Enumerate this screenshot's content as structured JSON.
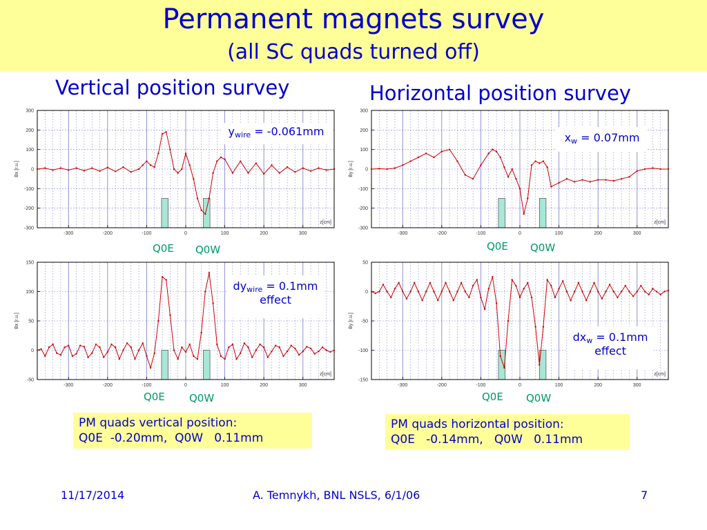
{
  "slide": {
    "title": "Permanent magnets survey",
    "subtitle": "(all SC quads turned off)",
    "vertical_title": "Vertical position survey",
    "horizontal_title": "Horizontal position survey",
    "footer_date": "11/17/2014",
    "footer_author": "A. Temnykh, BNL NSLS, 6/1/06",
    "footer_page": "7"
  },
  "colors": {
    "banner": "#ffff99",
    "text": "#0000cc",
    "quad_label": "#009966",
    "quad_fill": "#a8e6d6",
    "curve": "#cc0000",
    "grid": "#6666cc"
  },
  "annotations": {
    "p0": {
      "var": "y",
      "sub": "wire",
      "rest": " = -0.061mm"
    },
    "p1": {
      "var": "x",
      "sub": "w",
      "rest": " = 0.07mm"
    },
    "p2": {
      "var": "dy",
      "sub": "wire",
      "rest": " = 0.1mm",
      "line2": "effect"
    },
    "p3": {
      "var": "dx",
      "sub": "w",
      "rest": " = 0.1mm",
      "line2": "effect"
    }
  },
  "quad_labels": {
    "q0e": "Q0E",
    "q0w": "Q0W"
  },
  "pm_boxes": {
    "vertical": {
      "line1": "PM quads vertical position:",
      "line2": "Q0E  -0.20mm,  Q0W   0.11mm"
    },
    "horizontal": {
      "line1": "PM quads horizontal position:",
      "line2": "Q0E   -0.14mm,   Q0W   0.11mm"
    }
  },
  "chart_data": [
    {
      "type": "line",
      "ylabel": "Bx [r.u.]",
      "xlabel": "z[cm]",
      "xlim": [
        -380,
        380
      ],
      "ylim": [
        -300,
        300
      ],
      "xticks": [
        -300,
        -200,
        -100,
        0,
        100,
        200,
        300
      ],
      "yticks": [
        -300,
        -200,
        -100,
        0,
        100,
        200,
        300
      ],
      "quads": [
        {
          "name": "Q0E",
          "x0": -62,
          "x1": -45,
          "y0": -300,
          "y1": -150
        },
        {
          "name": "Q0W",
          "x0": 45,
          "x1": 62,
          "y0": -300,
          "y1": -150
        }
      ],
      "x": [
        -380,
        -360,
        -340,
        -320,
        -300,
        -280,
        -260,
        -240,
        -220,
        -200,
        -180,
        -160,
        -140,
        -120,
        -110,
        -100,
        -90,
        -80,
        -70,
        -60,
        -50,
        -40,
        -30,
        -20,
        -10,
        0,
        10,
        20,
        30,
        40,
        50,
        60,
        70,
        80,
        90,
        100,
        120,
        140,
        160,
        180,
        200,
        220,
        240,
        260,
        280,
        300,
        320,
        340,
        360,
        380
      ],
      "y": [
        0,
        5,
        -5,
        5,
        -5,
        5,
        -8,
        5,
        -10,
        8,
        -12,
        10,
        -15,
        0,
        20,
        40,
        20,
        10,
        80,
        180,
        190,
        100,
        0,
        -20,
        0,
        80,
        20,
        -50,
        -150,
        -210,
        -230,
        -150,
        -20,
        40,
        60,
        50,
        -20,
        40,
        -20,
        30,
        -25,
        20,
        -20,
        10,
        -15,
        5,
        -10,
        5,
        -5,
        0
      ]
    },
    {
      "type": "line",
      "ylabel": "By [r.u.]",
      "xlabel": "z[cm]",
      "xlim": [
        -380,
        380
      ],
      "ylim": [
        -300,
        300
      ],
      "xticks": [
        -300,
        -200,
        -100,
        0,
        100,
        200,
        300
      ],
      "yticks": [
        -300,
        -200,
        -100,
        0,
        100,
        200,
        300
      ],
      "quads": [
        {
          "name": "Q0E",
          "x0": -55,
          "x1": -38,
          "y0": -300,
          "y1": -150
        },
        {
          "name": "Q0W",
          "x0": 50,
          "x1": 67,
          "y0": -300,
          "y1": -150
        }
      ],
      "x": [
        -380,
        -360,
        -340,
        -320,
        -300,
        -280,
        -260,
        -240,
        -220,
        -200,
        -180,
        -160,
        -140,
        -120,
        -100,
        -80,
        -70,
        -60,
        -50,
        -40,
        -30,
        -20,
        -10,
        0,
        10,
        20,
        30,
        40,
        50,
        60,
        70,
        80,
        100,
        120,
        140,
        160,
        180,
        200,
        220,
        240,
        260,
        280,
        300,
        320,
        340,
        360,
        380
      ],
      "y": [
        0,
        2,
        0,
        5,
        20,
        40,
        60,
        80,
        60,
        90,
        100,
        40,
        -30,
        -50,
        20,
        80,
        100,
        90,
        60,
        10,
        -40,
        0,
        -50,
        -100,
        -230,
        -150,
        20,
        40,
        30,
        40,
        10,
        -90,
        -70,
        -50,
        -65,
        -55,
        -65,
        -55,
        -55,
        -60,
        -50,
        -40,
        -10,
        0,
        5,
        0,
        0
      ]
    },
    {
      "type": "line",
      "ylabel": "Bx [r.u.]",
      "xlabel": "z[cm]",
      "xlim": [
        -380,
        380
      ],
      "ylim": [
        -50,
        150
      ],
      "xticks": [
        -300,
        -200,
        -100,
        0,
        100,
        200,
        300
      ],
      "yticks": [
        -50,
        0,
        50,
        100,
        150
      ],
      "quads": [
        {
          "name": "Q0E",
          "x0": -62,
          "x1": -45,
          "y0": -50,
          "y1": 0
        },
        {
          "name": "Q0W",
          "x0": 45,
          "x1": 62,
          "y0": -50,
          "y1": 0
        }
      ],
      "x": [
        -380,
        -370,
        -360,
        -350,
        -340,
        -330,
        -320,
        -310,
        -300,
        -290,
        -280,
        -270,
        -260,
        -250,
        -240,
        -230,
        -220,
        -210,
        -200,
        -190,
        -180,
        -170,
        -160,
        -150,
        -140,
        -130,
        -120,
        -110,
        -100,
        -90,
        -80,
        -70,
        -60,
        -50,
        -40,
        -30,
        -20,
        -10,
        0,
        10,
        20,
        30,
        40,
        50,
        60,
        70,
        80,
        90,
        100,
        110,
        120,
        130,
        140,
        150,
        160,
        170,
        180,
        190,
        200,
        210,
        220,
        230,
        240,
        250,
        260,
        270,
        280,
        290,
        300,
        310,
        320,
        330,
        340,
        350,
        360,
        370,
        380
      ],
      "y": [
        0,
        2,
        -10,
        5,
        10,
        -5,
        -8,
        5,
        8,
        -10,
        -6,
        8,
        6,
        -12,
        -5,
        10,
        5,
        -12,
        -3,
        10,
        5,
        -15,
        0,
        12,
        5,
        -15,
        0,
        12,
        -10,
        -30,
        -5,
        50,
        125,
        120,
        60,
        0,
        -15,
        5,
        -3,
        10,
        -10,
        -15,
        30,
        100,
        132,
        80,
        10,
        -10,
        -15,
        5,
        10,
        -15,
        -5,
        12,
        5,
        -12,
        0,
        10,
        5,
        -12,
        -2,
        8,
        5,
        -10,
        -2,
        8,
        3,
        -8,
        -2,
        6,
        3,
        -6,
        -2,
        5,
        0,
        -3,
        0
      ]
    },
    {
      "type": "line",
      "ylabel": "By [r.u.]",
      "xlabel": "z[cm]",
      "xlim": [
        -380,
        380
      ],
      "ylim": [
        -150,
        50
      ],
      "xticks": [
        -300,
        -200,
        -100,
        0,
        100,
        200,
        300
      ],
      "yticks": [
        -150,
        -100,
        -50,
        0,
        50
      ],
      "quads": [
        {
          "name": "Q0E",
          "x0": -55,
          "x1": -38,
          "y0": -150,
          "y1": -100
        },
        {
          "name": "Q0W",
          "x0": 50,
          "x1": 67,
          "y0": -150,
          "y1": -100
        }
      ],
      "x": [
        -380,
        -370,
        -360,
        -350,
        -340,
        -330,
        -320,
        -310,
        -300,
        -290,
        -280,
        -270,
        -260,
        -250,
        -240,
        -230,
        -220,
        -210,
        -200,
        -190,
        -180,
        -170,
        -160,
        -150,
        -140,
        -130,
        -120,
        -110,
        -100,
        -90,
        -80,
        -70,
        -60,
        -50,
        -40,
        -30,
        -20,
        -10,
        0,
        10,
        20,
        30,
        40,
        50,
        60,
        70,
        80,
        90,
        100,
        110,
        120,
        130,
        140,
        150,
        160,
        170,
        180,
        190,
        200,
        210,
        220,
        230,
        240,
        250,
        260,
        270,
        280,
        290,
        300,
        310,
        320,
        330,
        340,
        350,
        360,
        370,
        380
      ],
      "y": [
        0,
        -3,
        0,
        12,
        0,
        -10,
        5,
        15,
        0,
        -12,
        0,
        15,
        0,
        -15,
        0,
        15,
        0,
        -15,
        0,
        15,
        0,
        -15,
        0,
        15,
        0,
        -10,
        10,
        20,
        -10,
        -30,
        5,
        25,
        -20,
        -110,
        -130,
        -50,
        20,
        10,
        -10,
        5,
        15,
        -10,
        -60,
        -125,
        -60,
        20,
        10,
        -10,
        5,
        18,
        0,
        -15,
        0,
        15,
        0,
        -15,
        0,
        15,
        0,
        -12,
        0,
        12,
        0,
        -10,
        0,
        10,
        0,
        -8,
        0,
        10,
        0,
        -5,
        5,
        0,
        -5,
        0,
        2
      ]
    }
  ]
}
